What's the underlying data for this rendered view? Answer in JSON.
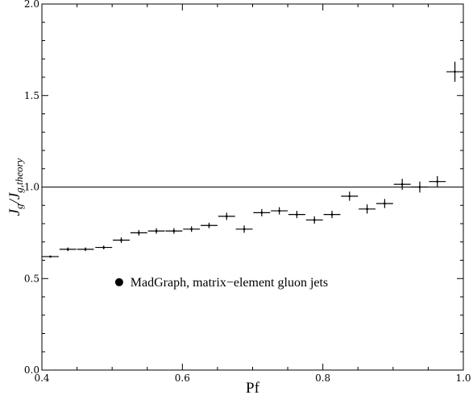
{
  "chart_data": {
    "type": "scatter",
    "xlabel": "Pf",
    "ylabel_main": "J",
    "ylabel_sub1": "g",
    "ylabel_sep": "/J",
    "ylabel_sub2": "g,theory",
    "xlim": [
      0.4,
      1.0
    ],
    "ylim": [
      0.0,
      2.0
    ],
    "x_ticks": [
      0.4,
      0.6,
      0.8,
      1.0
    ],
    "x_tick_labels": [
      "0.4",
      "0.6",
      "0.8",
      "1.0"
    ],
    "y_ticks": [
      0.0,
      0.5,
      1.0,
      1.5,
      2.0
    ],
    "y_tick_labels": [
      "0.0",
      "0.5",
      "1.0",
      "1.5",
      "2.0"
    ],
    "reference_line_y": 1.0,
    "legend": {
      "label": "MadGraph, matrix−element gluon jets",
      "placement": "lower-left"
    },
    "series": [
      {
        "points": [
          {
            "x": 0.412,
            "y": 0.62,
            "xerr": 0.012,
            "yerr": 0.005
          },
          {
            "x": 0.437,
            "y": 0.66,
            "xerr": 0.012,
            "yerr": 0.01
          },
          {
            "x": 0.462,
            "y": 0.66,
            "xerr": 0.012,
            "yerr": 0.01
          },
          {
            "x": 0.488,
            "y": 0.67,
            "xerr": 0.012,
            "yerr": 0.01
          },
          {
            "x": 0.513,
            "y": 0.71,
            "xerr": 0.012,
            "yerr": 0.015
          },
          {
            "x": 0.538,
            "y": 0.75,
            "xerr": 0.012,
            "yerr": 0.015
          },
          {
            "x": 0.563,
            "y": 0.76,
            "xerr": 0.012,
            "yerr": 0.015
          },
          {
            "x": 0.588,
            "y": 0.76,
            "xerr": 0.012,
            "yerr": 0.015
          },
          {
            "x": 0.613,
            "y": 0.77,
            "xerr": 0.012,
            "yerr": 0.015
          },
          {
            "x": 0.638,
            "y": 0.79,
            "xerr": 0.012,
            "yerr": 0.015
          },
          {
            "x": 0.663,
            "y": 0.84,
            "xerr": 0.012,
            "yerr": 0.02
          },
          {
            "x": 0.688,
            "y": 0.77,
            "xerr": 0.012,
            "yerr": 0.02
          },
          {
            "x": 0.713,
            "y": 0.86,
            "xerr": 0.012,
            "yerr": 0.02
          },
          {
            "x": 0.738,
            "y": 0.87,
            "xerr": 0.012,
            "yerr": 0.02
          },
          {
            "x": 0.763,
            "y": 0.85,
            "xerr": 0.012,
            "yerr": 0.02
          },
          {
            "x": 0.788,
            "y": 0.82,
            "xerr": 0.012,
            "yerr": 0.02
          },
          {
            "x": 0.813,
            "y": 0.85,
            "xerr": 0.012,
            "yerr": 0.02
          },
          {
            "x": 0.838,
            "y": 0.95,
            "xerr": 0.012,
            "yerr": 0.025
          },
          {
            "x": 0.863,
            "y": 0.88,
            "xerr": 0.012,
            "yerr": 0.025
          },
          {
            "x": 0.888,
            "y": 0.91,
            "xerr": 0.012,
            "yerr": 0.025
          },
          {
            "x": 0.913,
            "y": 1.015,
            "xerr": 0.012,
            "yerr": 0.03
          },
          {
            "x": 0.938,
            "y": 1.0,
            "xerr": 0.012,
            "yerr": 0.03
          },
          {
            "x": 0.963,
            "y": 1.03,
            "xerr": 0.012,
            "yerr": 0.03
          },
          {
            "x": 0.988,
            "y": 1.63,
            "xerr": 0.012,
            "yerr": 0.055
          }
        ]
      }
    ],
    "grid": false
  }
}
